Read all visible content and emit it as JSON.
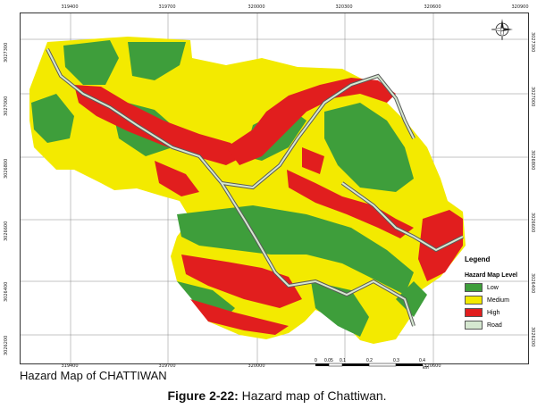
{
  "map": {
    "title": "Hazard Map of CHATTIWAN",
    "grid_x_labels": [
      "319400",
      "319700",
      "320000",
      "320300",
      "320600",
      "320900"
    ],
    "grid_y_labels": [
      "3027300",
      "3027000",
      "3026800",
      "3026600",
      "3026400",
      "3026200"
    ],
    "bottom_x_labels": [
      "319400",
      "319700",
      "320000",
      "320300",
      "320600"
    ],
    "colors": {
      "low": "#3e9e3b",
      "medium": "#f3ea00",
      "high": "#e11e1e",
      "road": "#d5e7d0",
      "road_outline": "#5a5a5a"
    }
  },
  "legend": {
    "title": "Legend",
    "subtitle": "Hazard Map Level",
    "items": [
      {
        "label": "Low",
        "color": "#3e9e3b"
      },
      {
        "label": "Medium",
        "color": "#f3ea00"
      },
      {
        "label": "High",
        "color": "#e11e1e"
      },
      {
        "label": "Road",
        "color": "#d5e7d0"
      }
    ]
  },
  "scale": {
    "labels": [
      "0",
      "0.05",
      "0.1",
      "0.2",
      "0.3",
      "0.4"
    ],
    "unit": "km"
  },
  "caption": {
    "prefix": "Figure 2-22:",
    "text": " Hazard map of Chattiwan."
  }
}
